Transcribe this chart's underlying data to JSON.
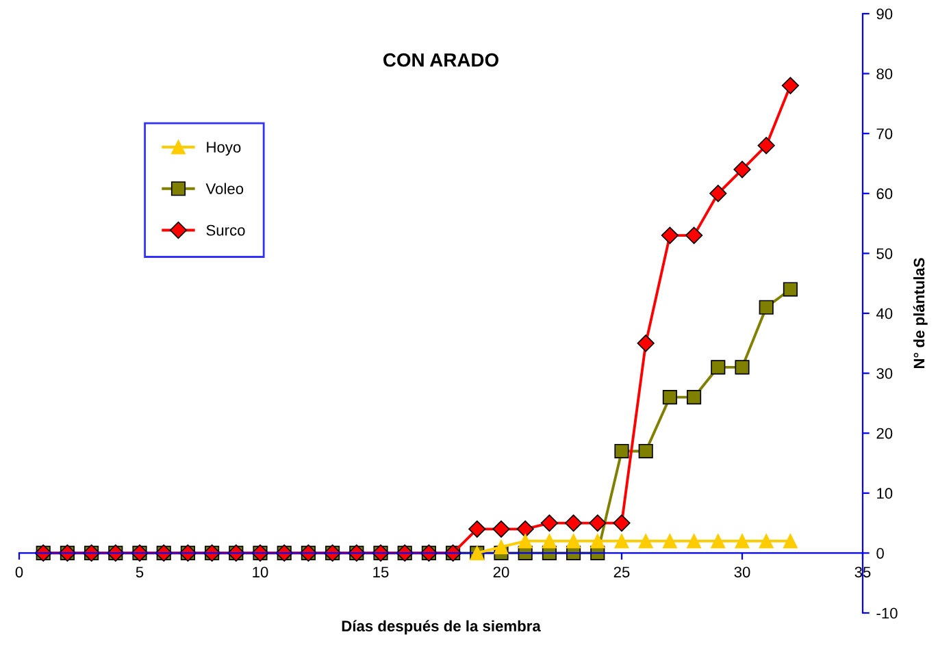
{
  "chart_data": {
    "type": "line",
    "title": "CON ARADO",
    "xlabel": "Días después de la siembra",
    "ylabel": "N° de plántulaS",
    "x": [
      1,
      2,
      3,
      4,
      5,
      6,
      7,
      8,
      9,
      10,
      11,
      12,
      13,
      14,
      15,
      16,
      17,
      18,
      19,
      20,
      21,
      22,
      23,
      24,
      25,
      26,
      27,
      28,
      29,
      30,
      31,
      32
    ],
    "series": [
      {
        "name": "Hoyo",
        "color": "#ffcc00",
        "marker": "triangle",
        "values": [
          null,
          null,
          null,
          null,
          null,
          null,
          null,
          null,
          null,
          null,
          null,
          null,
          null,
          null,
          null,
          null,
          null,
          null,
          0,
          1,
          2,
          2,
          2,
          2,
          2,
          2,
          2,
          2,
          2,
          2,
          2,
          2
        ]
      },
      {
        "name": "Voleo",
        "color": "#808000",
        "marker": "square",
        "values": [
          0,
          0,
          0,
          0,
          0,
          0,
          0,
          0,
          0,
          0,
          0,
          0,
          0,
          0,
          0,
          0,
          0,
          0,
          0,
          0,
          0,
          0,
          0,
          0,
          17,
          17,
          26,
          26,
          31,
          31,
          41,
          44
        ]
      },
      {
        "name": "Surco",
        "color": "#ff0000",
        "marker": "diamond",
        "values": [
          0,
          0,
          0,
          0,
          0,
          0,
          0,
          0,
          0,
          0,
          0,
          0,
          0,
          0,
          0,
          0,
          0,
          0,
          4,
          4,
          4,
          5,
          5,
          5,
          5,
          35,
          53,
          53,
          60,
          64,
          68,
          78
        ]
      }
    ],
    "xlim": [
      0,
      35
    ],
    "xticks": [
      0,
      5,
      10,
      15,
      20,
      25,
      30,
      35
    ],
    "ylim": [
      -10,
      90
    ],
    "yticks": [
      -10,
      0,
      10,
      20,
      30,
      40,
      50,
      60,
      70,
      80,
      90
    ],
    "grid": false,
    "legend": "top left"
  }
}
